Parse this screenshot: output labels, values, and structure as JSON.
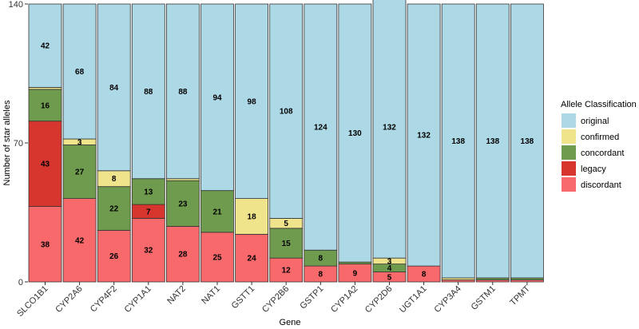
{
  "chart_data": {
    "type": "bar",
    "stacked": true,
    "xlabel": "Gene",
    "ylabel": "Number of star alleles",
    "ylim": [
      0,
      140
    ],
    "yticks": [
      0,
      70,
      140
    ],
    "grid": false,
    "legend_position": "right",
    "legend_title": "Allele Classification",
    "categories": [
      "SLCO1B1",
      "CYP2A6",
      "CYP4F2",
      "CYP1A1",
      "NAT2",
      "NAT1",
      "GSTT1",
      "CYP2B6",
      "GSTP1",
      "CYP1A2",
      "CYP2D6",
      "UGT1A1",
      "CYP3A4",
      "GSTM1",
      "TPMT"
    ],
    "series": [
      {
        "name": "discordant",
        "color": "#F8696B",
        "values": [
          38,
          42,
          26,
          32,
          28,
          25,
          24,
          12,
          8,
          9,
          5,
          8,
          1,
          1,
          1
        ]
      },
      {
        "name": "legacy",
        "color": "#D7362F",
        "values": [
          43,
          0,
          0,
          7,
          0,
          0,
          0,
          0,
          0,
          0,
          0,
          0,
          0,
          0,
          0
        ]
      },
      {
        "name": "concordant",
        "color": "#6E9B4E",
        "values": [
          16,
          27,
          22,
          13,
          23,
          21,
          0,
          15,
          8,
          1,
          4,
          0,
          0,
          1,
          1
        ]
      },
      {
        "name": "confirmed",
        "color": "#EFE48C",
        "values": [
          1,
          3,
          8,
          0,
          1,
          0,
          18,
          5,
          0,
          0,
          3,
          0,
          1,
          0,
          0
        ]
      },
      {
        "name": "original",
        "color": "#ADD8E6",
        "values": [
          42,
          68,
          84,
          88,
          88,
          94,
          98,
          108,
          124,
          130,
          132,
          132,
          138,
          138,
          138
        ]
      }
    ],
    "labeled_threshold": 3
  }
}
